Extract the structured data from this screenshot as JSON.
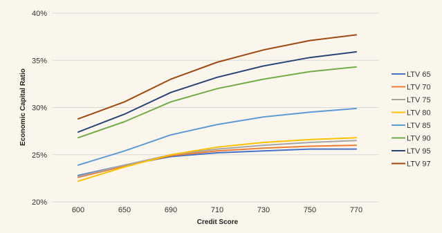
{
  "chart_data": {
    "type": "line",
    "title": "",
    "xlabel": "Credit Score",
    "ylabel": "Economic Capital Ratio",
    "x": [
      "600",
      "650",
      "690",
      "710",
      "730",
      "750",
      "770"
    ],
    "yticks": [
      "20%",
      "25%",
      "30%",
      "35%",
      "40%"
    ],
    "ylim": [
      20,
      40
    ],
    "ytick_values": [
      20,
      25,
      30,
      35,
      40
    ],
    "grid": "horizontal",
    "legend_position": "right",
    "series": [
      {
        "name": "LTV 65",
        "color": "#4472c4",
        "values": [
          22.8,
          23.9,
          24.8,
          25.2,
          25.4,
          25.6,
          25.6
        ]
      },
      {
        "name": "LTV 70",
        "color": "#ed7d31",
        "values": [
          22.6,
          23.8,
          24.9,
          25.4,
          25.7,
          25.9,
          26.0
        ]
      },
      {
        "name": "LTV 75",
        "color": "#a5a5a5",
        "values": [
          22.7,
          23.9,
          25.0,
          25.6,
          26.0,
          26.3,
          26.5
        ]
      },
      {
        "name": "LTV 80",
        "color": "#ffc000",
        "values": [
          22.2,
          23.7,
          25.0,
          25.8,
          26.3,
          26.6,
          26.8
        ]
      },
      {
        "name": "LTV 85",
        "color": "#5b9bd5",
        "values": [
          23.9,
          25.4,
          27.1,
          28.2,
          29.0,
          29.5,
          29.9
        ]
      },
      {
        "name": "LTV 90",
        "color": "#70ad47",
        "values": [
          26.8,
          28.5,
          30.6,
          32.0,
          33.0,
          33.8,
          34.3
        ]
      },
      {
        "name": "LTV 95",
        "color": "#264478",
        "values": [
          27.4,
          29.3,
          31.6,
          33.2,
          34.4,
          35.3,
          35.9
        ]
      },
      {
        "name": "LTV 97",
        "color": "#9e480e",
        "values": [
          28.8,
          30.6,
          33.0,
          34.8,
          36.1,
          37.1,
          37.7
        ]
      }
    ]
  }
}
